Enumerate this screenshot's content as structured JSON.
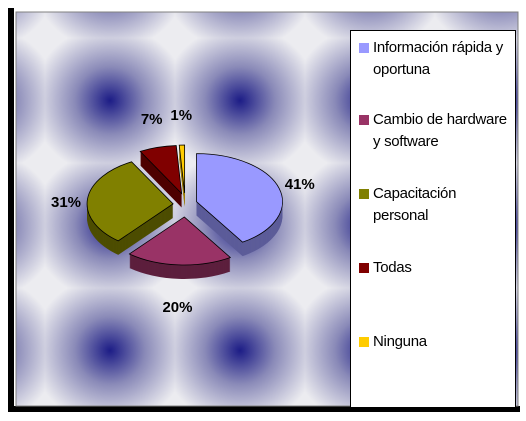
{
  "chart_data": {
    "type": "pie",
    "categories": [
      "Información rápida y oportuna",
      "Cambio de hardware y software",
      "Capacitación personal",
      "Todas",
      "Ninguna"
    ],
    "values": [
      41,
      20,
      31,
      7,
      1
    ],
    "value_labels": [
      "41%",
      "20%",
      "31%",
      "7%",
      "1%"
    ],
    "colors": [
      "#9999ff",
      "#993366",
      "#808000",
      "#800000",
      "#ffcc00"
    ],
    "legend": "right"
  }
}
